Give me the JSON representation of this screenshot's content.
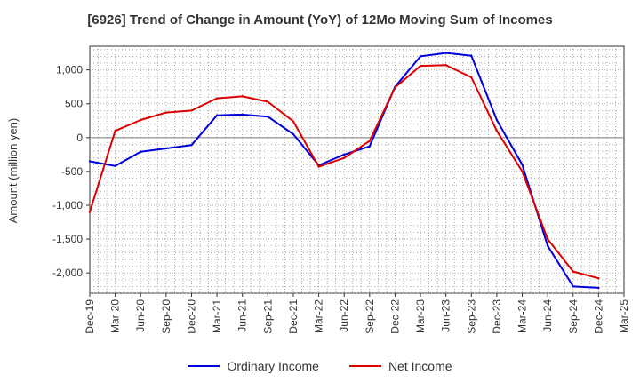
{
  "chart_data": {
    "type": "line",
    "title": "[6926]  Trend of Change in Amount (YoY) of 12Mo Moving Sum of Incomes",
    "ylabel": "Amount (million yen)",
    "xlabel": "",
    "ylim": [
      -2300,
      1350
    ],
    "yticks": [
      1000,
      500,
      0,
      -500,
      -1000,
      -1500,
      -2000
    ],
    "ytick_labels": [
      "1,000",
      "500",
      "0",
      "-500",
      "-1,000",
      "-1,500",
      "-2,000"
    ],
    "x_tick_labels": [
      "Dec-19",
      "Mar-20",
      "Jun-20",
      "Sep-20",
      "Dec-20",
      "Mar-21",
      "Jun-21",
      "Sep-21",
      "Dec-21",
      "Mar-22",
      "Jun-22",
      "Sep-22",
      "Dec-22",
      "Mar-23",
      "Jun-23",
      "Sep-23",
      "Dec-23",
      "Mar-24",
      "Jun-24",
      "Sep-24",
      "Dec-24",
      "Mar-25"
    ],
    "x_months": [
      "Dec-19",
      "Jan-20",
      "Feb-20",
      "Mar-20",
      "Apr-20",
      "May-20",
      "Jun-20",
      "Jul-20",
      "Aug-20",
      "Sep-20",
      "Oct-20",
      "Nov-20",
      "Dec-20",
      "Jan-21",
      "Feb-21",
      "Mar-21",
      "Apr-21",
      "May-21",
      "Jun-21",
      "Jul-21",
      "Aug-21",
      "Sep-21",
      "Oct-21",
      "Nov-21",
      "Dec-21",
      "Jan-22",
      "Feb-22",
      "Mar-22",
      "Apr-22",
      "May-22",
      "Jun-22",
      "Jul-22",
      "Aug-22",
      "Sep-22",
      "Oct-22",
      "Nov-22",
      "Dec-22",
      "Jan-23",
      "Feb-23",
      "Mar-23",
      "Apr-23",
      "May-23",
      "Jun-23",
      "Jul-23",
      "Aug-23",
      "Sep-23",
      "Oct-23",
      "Nov-23",
      "Dec-23",
      "Jan-24",
      "Feb-24",
      "Mar-24",
      "Apr-24",
      "May-24",
      "Jun-24",
      "Jul-24",
      "Aug-24",
      "Sep-24",
      "Oct-24",
      "Nov-24",
      "Dec-24",
      "Jan-25",
      "Feb-25",
      "Mar-25"
    ],
    "grid": true,
    "legend_position": "bottom",
    "series": [
      {
        "name": "Ordinary Income",
        "color": "#0000dd",
        "x": [
          "Dec-19",
          "Mar-20",
          "Jun-20",
          "Sep-20",
          "Dec-20",
          "Mar-21",
          "Jun-21",
          "Sep-21",
          "Dec-21",
          "Mar-22",
          "Jun-22",
          "Sep-22",
          "Dec-22",
          "Mar-23",
          "Jun-23",
          "Sep-23",
          "Dec-23",
          "Mar-24",
          "Jun-24",
          "Sep-24",
          "Dec-24"
        ],
        "values": [
          -350,
          -420,
          -210,
          -160,
          -110,
          330,
          340,
          310,
          50,
          -410,
          -250,
          -130,
          750,
          1200,
          1250,
          1210,
          260,
          -400,
          -1600,
          -2200,
          -2220
        ]
      },
      {
        "name": "Net Income",
        "color": "#dd0000",
        "x": [
          "Dec-19",
          "Mar-20",
          "Jun-20",
          "Sep-20",
          "Dec-20",
          "Mar-21",
          "Jun-21",
          "Sep-21",
          "Dec-21",
          "Mar-22",
          "Jun-22",
          "Sep-22",
          "Dec-22",
          "Mar-23",
          "Jun-23",
          "Sep-23",
          "Dec-23",
          "Mar-24",
          "Jun-24",
          "Sep-24",
          "Dec-24"
        ],
        "values": [
          -1100,
          100,
          260,
          370,
          400,
          580,
          610,
          530,
          240,
          -430,
          -300,
          -50,
          740,
          1060,
          1070,
          890,
          100,
          -500,
          -1500,
          -1980,
          -2080
        ]
      }
    ]
  }
}
